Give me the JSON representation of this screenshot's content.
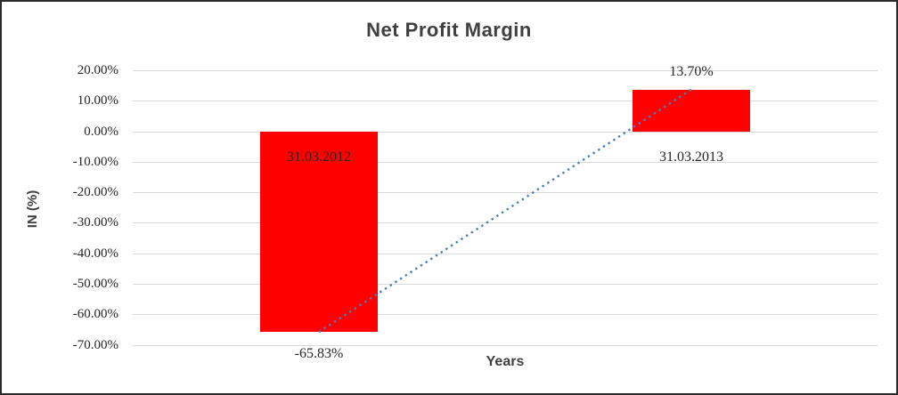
{
  "chart_data": {
    "type": "bar",
    "title": "Net Profit Margin",
    "xlabel": "Years",
    "ylabel": "IN (%)",
    "categories": [
      "31.03.2012",
      "31.03.2013"
    ],
    "values": [
      -65.83,
      13.7
    ],
    "data_labels": [
      "-65.83%",
      "13.70%"
    ],
    "y_tick_values": [
      20,
      10,
      0,
      -10,
      -20,
      -30,
      -40,
      -50,
      -60,
      -70
    ],
    "y_tick_labels": [
      "20.00%",
      "10.00%",
      "0.00%",
      "-10.00%",
      "-20.00%",
      "-30.00%",
      "-40.00%",
      "-50.00%",
      "-60.00%",
      "-70.00%"
    ],
    "ylim": [
      -70,
      20
    ],
    "grid": true,
    "legend": "none",
    "trendline": {
      "type": "linear",
      "style": "dotted",
      "points": [
        [
          0,
          -65.83
        ],
        [
          1,
          13.7
        ]
      ]
    },
    "colors": {
      "bar": "#FF0000",
      "trendline": "#4A7EBB",
      "gridline": "#D9D9D9",
      "title_text": "#404040",
      "axis_title_text": "#404040",
      "label_text": "#262626",
      "border": "#2B2B2B"
    }
  }
}
